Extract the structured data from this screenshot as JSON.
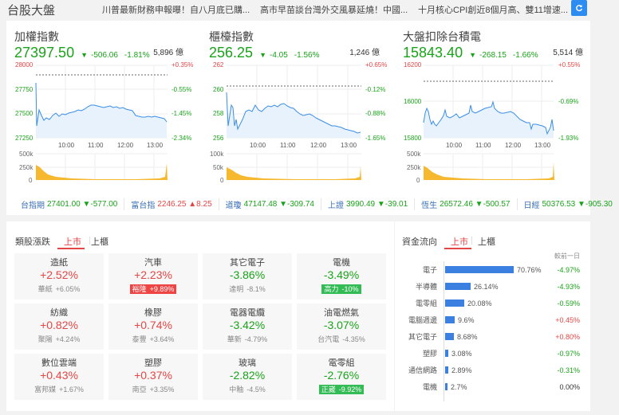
{
  "header": {
    "title": "台股大盤",
    "news": [
      "川普最新財務申報曝！自八月底已購...",
      "高市早苗談台灣外交風暴延燒！中國...",
      "十月核心CPI創近8個月高、雙11增速..."
    ],
    "refresh_icon": "refresh-icon"
  },
  "indices": [
    {
      "name": "加權指數",
      "value": "27397.50",
      "change": "-506.06",
      "pct": "-1.81%",
      "amount": "5,896 億",
      "y_left": [
        "28000",
        "27750",
        "27500",
        "27250"
      ],
      "y_right": [
        "+0.35%",
        "-0.55%",
        "-1.45%",
        "-2.34%"
      ],
      "vol_labels": [
        "500k",
        "250k",
        "0"
      ]
    },
    {
      "name": "櫃檯指數",
      "value": "256.25",
      "change": "-4.05",
      "pct": "-1.56%",
      "amount": "1,246 億",
      "y_left": [
        "262",
        "260",
        "258",
        "256"
      ],
      "y_right": [
        "+0.65%",
        "-0.12%",
        "-0.88%",
        "-1.65%"
      ],
      "vol_labels": [
        "100k",
        "50k",
        "0"
      ]
    },
    {
      "name": "大盤扣除台積電",
      "value": "15843.40",
      "change": "-268.15",
      "pct": "-1.66%",
      "amount": "5,514 億",
      "y_left": [
        "16200",
        "16000",
        "15800"
      ],
      "y_right": [
        "+0.55%",
        "-0.69%",
        "-1.93%"
      ],
      "vol_labels": [
        "500k",
        "250k",
        "0"
      ]
    }
  ],
  "x_ticks": [
    "10:00",
    "11:00",
    "12:00",
    "13:00"
  ],
  "chart_data": [
    {
      "type": "line",
      "title": "加權指數",
      "x": [
        "09:00",
        "09:30",
        "10:00",
        "10:30",
        "11:00",
        "11:30",
        "12:00",
        "12:30",
        "13:00",
        "13:25"
      ],
      "values": [
        27820,
        27480,
        27470,
        27500,
        27580,
        27570,
        27560,
        27460,
        27460,
        27420
      ],
      "ylim": [
        27250,
        28000
      ],
      "reference": 27903.56
    },
    {
      "type": "line",
      "title": "櫃檯指數",
      "x": [
        "09:00",
        "09:30",
        "10:00",
        "10:30",
        "11:00",
        "11:30",
        "12:00",
        "12:30",
        "13:00",
        "13:25"
      ],
      "values": [
        259.8,
        257.3,
        258.8,
        258.5,
        258.8,
        258.1,
        257.8,
        257.0,
        256.7,
        256.3
      ],
      "ylim": [
        256,
        262
      ],
      "reference": 260.3
    },
    {
      "type": "line",
      "title": "大盤扣除台積電",
      "x": [
        "09:00",
        "09:30",
        "10:00",
        "10:30",
        "11:00",
        "11:30",
        "12:00",
        "12:30",
        "13:00",
        "13:25"
      ],
      "values": [
        15880,
        15860,
        15910,
        15930,
        15950,
        15940,
        15930,
        15880,
        15870,
        15843
      ],
      "ylim": [
        15800,
        16200
      ],
      "reference": 16111.55
    }
  ],
  "ticker": [
    {
      "name": "台指期",
      "value": "27401.00",
      "change": "▼-577.00",
      "color": "green"
    },
    {
      "name": "富台指",
      "value": "2246.25",
      "change": "▲8.25",
      "color": "red"
    },
    {
      "name": "道瓊",
      "value": "47147.48",
      "change": "▼-309.74",
      "color": "green"
    },
    {
      "name": "上證",
      "value": "3990.49",
      "change": "▼-39.01",
      "color": "green"
    },
    {
      "name": "恆生",
      "value": "26572.46",
      "change": "▼-500.57",
      "color": "green"
    },
    {
      "name": "日經",
      "value": "50376.53",
      "change": "▼-905.30",
      "color": "green"
    }
  ],
  "sectors": {
    "title": "類股漲跌",
    "tabs": [
      "上市",
      "上櫃"
    ],
    "cards": [
      {
        "name": "造紙",
        "pct": "+2.52%",
        "stock": "華紙",
        "stock_pct": "+6.05%",
        "dir": "red",
        "badge": ""
      },
      {
        "name": "汽車",
        "pct": "+2.23%",
        "stock": "裕隆",
        "stock_pct": "+9.89%",
        "dir": "red",
        "badge": "badge-red"
      },
      {
        "name": "其它電子",
        "pct": "-3.86%",
        "stock": "達明",
        "stock_pct": "-8.1%",
        "dir": "green",
        "badge": ""
      },
      {
        "name": "電機",
        "pct": "-3.49%",
        "stock": "高力",
        "stock_pct": "-10%",
        "dir": "green",
        "badge": "badge-green"
      },
      {
        "name": "紡織",
        "pct": "+0.82%",
        "stock": "聚陽",
        "stock_pct": "+4.24%",
        "dir": "red",
        "badge": ""
      },
      {
        "name": "橡膠",
        "pct": "+0.74%",
        "stock": "泰豐",
        "stock_pct": "+3.64%",
        "dir": "red",
        "badge": ""
      },
      {
        "name": "電器電纜",
        "pct": "-3.42%",
        "stock": "華新",
        "stock_pct": "-4.79%",
        "dir": "green",
        "badge": ""
      },
      {
        "name": "油電燃氣",
        "pct": "-3.07%",
        "stock": "台汽電",
        "stock_pct": "-4.35%",
        "dir": "green",
        "badge": ""
      },
      {
        "name": "數位雲端",
        "pct": "+0.43%",
        "stock": "富邦媒",
        "stock_pct": "+1.67%",
        "dir": "red",
        "badge": ""
      },
      {
        "name": "塑膠",
        "pct": "+0.37%",
        "stock": "南亞",
        "stock_pct": "+3.35%",
        "dir": "red",
        "badge": ""
      },
      {
        "name": "玻璃",
        "pct": "-2.82%",
        "stock": "中釉",
        "stock_pct": "-4.5%",
        "dir": "green",
        "badge": ""
      },
      {
        "name": "電零組",
        "pct": "-2.76%",
        "stock": "正崴",
        "stock_pct": "-9.92%",
        "dir": "green",
        "badge": "badge-green"
      }
    ]
  },
  "fund_flow": {
    "title": "資金流向",
    "tabs": [
      "上市",
      "上櫃"
    ],
    "compare_label": "較前一日",
    "rows": [
      {
        "name": "電子",
        "pct": "70.76%",
        "value": 70.76,
        "chg": "-4.97%",
        "dir": "green"
      },
      {
        "name": "半導體",
        "pct": "26.14%",
        "value": 26.14,
        "chg": "-4.93%",
        "dir": "green"
      },
      {
        "name": "電零組",
        "pct": "20.08%",
        "value": 20.08,
        "chg": "-0.59%",
        "dir": "green"
      },
      {
        "name": "電腦週邊",
        "pct": "9.6%",
        "value": 9.6,
        "chg": "+0.45%",
        "dir": "red"
      },
      {
        "name": "其它電子",
        "pct": "8.68%",
        "value": 8.68,
        "chg": "+0.80%",
        "dir": "red"
      },
      {
        "name": "塑膠",
        "pct": "3.08%",
        "value": 3.08,
        "chg": "-0.97%",
        "dir": "green"
      },
      {
        "name": "通信網路",
        "pct": "2.89%",
        "value": 2.89,
        "chg": "-0.31%",
        "dir": "green"
      },
      {
        "name": "電機",
        "pct": "2.7%",
        "value": 2.7,
        "chg": "0.00%",
        "dir": "black"
      }
    ]
  }
}
